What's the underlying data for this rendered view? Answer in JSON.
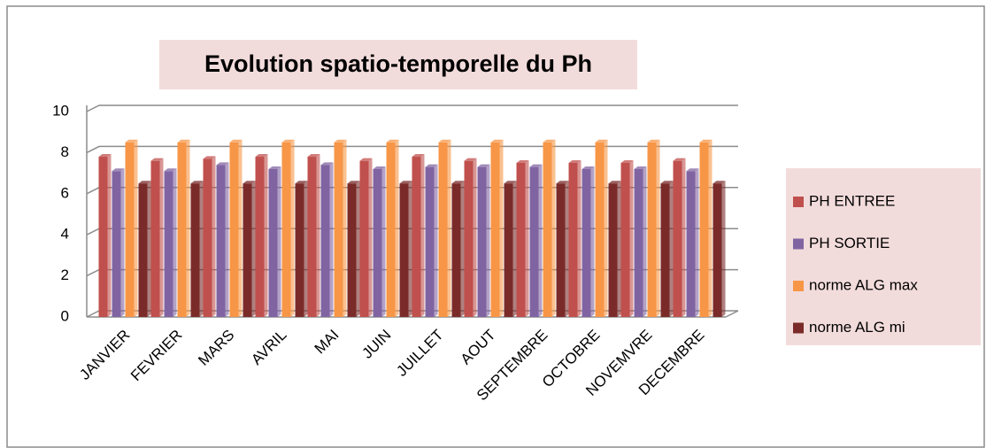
{
  "chart_data": {
    "type": "bar",
    "title": "Evolution spatio-temporelle du Ph",
    "categories": [
      "JANVIER",
      "FEVRIER",
      "MARS",
      "AVRIL",
      "MAI",
      "JUIN",
      "JUILLET",
      "AOUT",
      "SEPTEMBRE",
      "OCTOBRE",
      "NOVEMVRE",
      "DECEMBRE"
    ],
    "series": [
      {
        "name": "PH ENTREE",
        "color": "#c0504d",
        "values": [
          7.8,
          7.6,
          7.7,
          7.8,
          7.8,
          7.6,
          7.8,
          7.6,
          7.5,
          7.5,
          7.5,
          7.6
        ]
      },
      {
        "name": "PH SORTIE",
        "color": "#8064a2",
        "values": [
          7.1,
          7.1,
          7.4,
          7.2,
          7.4,
          7.2,
          7.3,
          7.3,
          7.3,
          7.2,
          7.2,
          7.1
        ]
      },
      {
        "name": "norme ALG max",
        "color": "#f79646",
        "values": [
          8.5,
          8.5,
          8.5,
          8.5,
          8.5,
          8.5,
          8.5,
          8.5,
          8.5,
          8.5,
          8.5,
          8.5
        ]
      },
      {
        "name": "norme ALG mi",
        "color": "#7a2b29",
        "values": [
          6.5,
          6.5,
          6.5,
          6.5,
          6.5,
          6.5,
          6.5,
          6.5,
          6.5,
          6.5,
          6.5,
          6.5
        ]
      }
    ],
    "ylim": [
      0,
      10
    ],
    "yticks": [
      0,
      2,
      4,
      6,
      8,
      10
    ],
    "grid": true,
    "legend": "right"
  }
}
